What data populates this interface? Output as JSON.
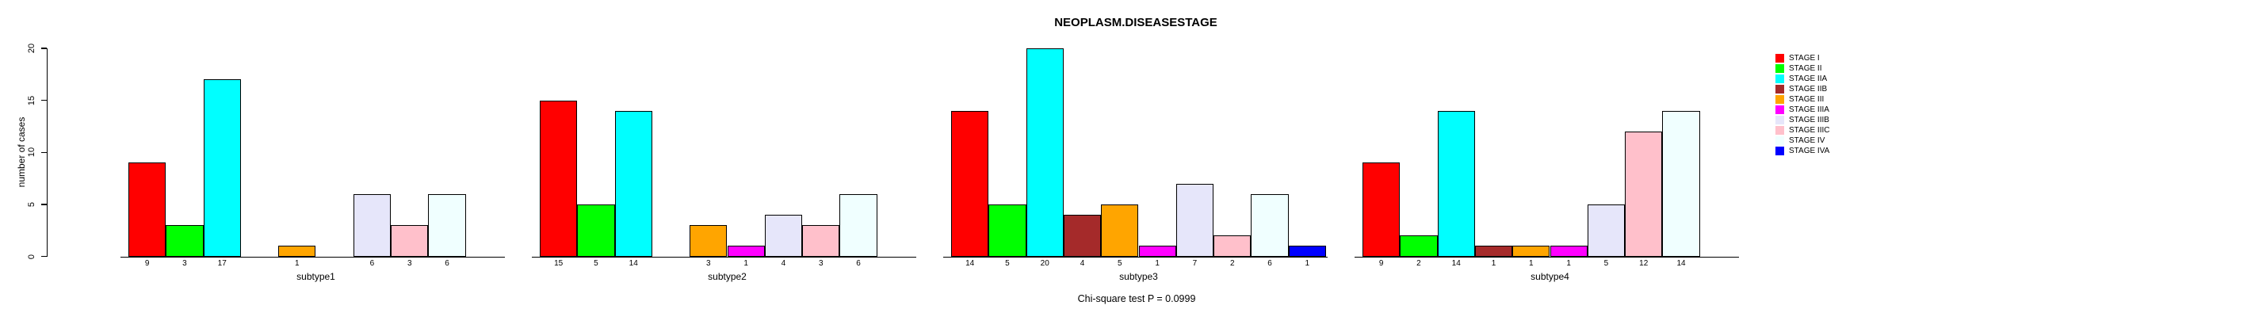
{
  "chart_data": {
    "type": "bar",
    "title": "NEOPLASM.DISEASESTAGE",
    "ylabel": "number of cases",
    "xlabel": "",
    "ylim": [
      0,
      20
    ],
    "yticks": [
      0,
      5,
      10,
      15,
      20
    ],
    "grid": false,
    "legend_position": "right-outside",
    "annotation": "Chi-square test P = 0.0999",
    "bar_value_labels": true,
    "categories": [
      "subtype1",
      "subtype2",
      "subtype3",
      "subtype4"
    ],
    "series": [
      {
        "name": "STAGE I",
        "color": "#FF0000",
        "values": [
          9,
          15,
          14,
          9
        ]
      },
      {
        "name": "STAGE II",
        "color": "#00FF00",
        "values": [
          3,
          5,
          5,
          2
        ]
      },
      {
        "name": "STAGE IIA",
        "color": "#00FFFF",
        "values": [
          17,
          14,
          20,
          14
        ]
      },
      {
        "name": "STAGE IIB",
        "color": "#A52A2A",
        "values": [
          0,
          0,
          4,
          1
        ]
      },
      {
        "name": "STAGE III",
        "color": "#FFA500",
        "values": [
          1,
          3,
          5,
          1
        ]
      },
      {
        "name": "STAGE IIIA",
        "color": "#FF00FF",
        "values": [
          0,
          1,
          1,
          1
        ]
      },
      {
        "name": "STAGE IIIB",
        "color": "#E6E6FA",
        "values": [
          6,
          4,
          7,
          5
        ]
      },
      {
        "name": "STAGE IIIC",
        "color": "#FFC0CB",
        "values": [
          3,
          3,
          2,
          12
        ]
      },
      {
        "name": "STAGE IV",
        "color": "#F0FFFF",
        "values": [
          6,
          6,
          6,
          14
        ]
      },
      {
        "name": "STAGE IVA",
        "color": "#0000FF",
        "values": [
          0,
          0,
          1,
          0
        ]
      }
    ]
  },
  "colors": {
    "axis": "#000000",
    "text": "#000000",
    "background": "#FFFFFF"
  }
}
